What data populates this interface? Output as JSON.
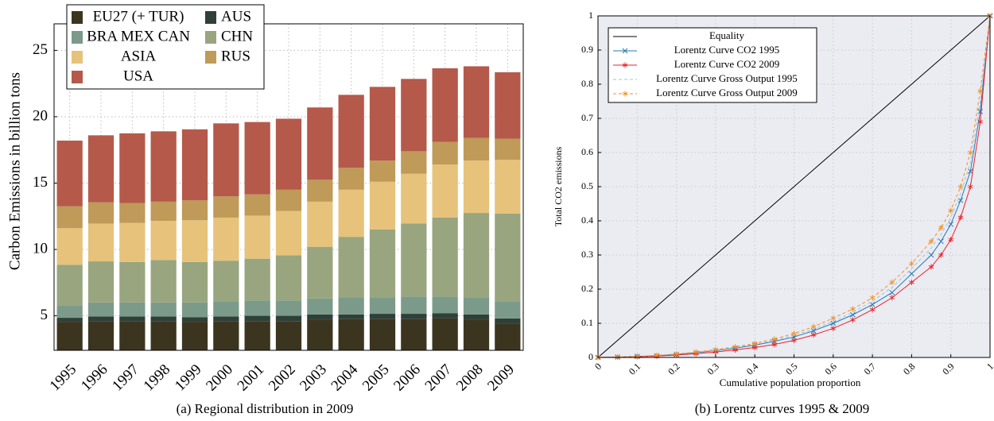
{
  "chart_data": [
    {
      "type": "bar",
      "stacked": true,
      "caption": "(a) Regional distribution in 2009",
      "ylabel": "Carbon Emissions in billion tons",
      "categories": [
        "1995",
        "1996",
        "1997",
        "1998",
        "1999",
        "2000",
        "2001",
        "2002",
        "2003",
        "2004",
        "2005",
        "2006",
        "2007",
        "2008",
        "2009"
      ],
      "series": [
        {
          "name": "EU27 (+ TUR)",
          "color": "#3b3520",
          "values": [
            4.55,
            4.6,
            4.6,
            4.6,
            4.55,
            4.6,
            4.6,
            4.6,
            4.7,
            4.75,
            4.75,
            4.75,
            4.8,
            4.7,
            4.4
          ]
        },
        {
          "name": "AUS",
          "color": "#2f4038",
          "values": [
            0.3,
            0.35,
            0.35,
            0.35,
            0.35,
            0.35,
            0.4,
            0.4,
            0.4,
            0.35,
            0.4,
            0.4,
            0.4,
            0.4,
            0.4
          ]
        },
        {
          "name": "BRA MEX CAN",
          "color": "#7b9a8a",
          "values": [
            0.95,
            1.05,
            1.05,
            1.05,
            1.1,
            1.15,
            1.15,
            1.15,
            1.2,
            1.25,
            1.25,
            1.3,
            1.25,
            1.3,
            1.25
          ]
        },
        {
          "name": "CHN",
          "color": "#98a57e",
          "values": [
            3.05,
            3.1,
            3.05,
            3.2,
            3.05,
            3.05,
            3.15,
            3.4,
            3.9,
            4.6,
            5.1,
            5.5,
            5.95,
            6.35,
            6.65
          ]
        },
        {
          "name": "ASIA",
          "color": "#e6c27a",
          "values": [
            2.75,
            2.85,
            2.95,
            2.95,
            3.15,
            3.25,
            3.25,
            3.35,
            3.4,
            3.55,
            3.6,
            3.75,
            4.0,
            3.95,
            4.05
          ]
        },
        {
          "name": "RUS",
          "color": "#bf9a58",
          "values": [
            1.65,
            1.6,
            1.5,
            1.45,
            1.5,
            1.6,
            1.6,
            1.6,
            1.65,
            1.65,
            1.6,
            1.7,
            1.7,
            1.7,
            1.6
          ]
        },
        {
          "name": "USA",
          "color": "#b5594a",
          "values": [
            4.95,
            5.05,
            5.25,
            5.3,
            5.35,
            5.5,
            5.45,
            5.35,
            5.45,
            5.5,
            5.55,
            5.45,
            5.55,
            5.4,
            5.0
          ]
        }
      ],
      "ylim": [
        2.4,
        27
      ],
      "yticks": [
        5,
        10,
        15,
        20,
        25
      ],
      "grid": true,
      "legend": "upper left"
    },
    {
      "type": "line",
      "caption": "(b) Lorentz curves 1995 & 2009",
      "xlabel": "Cumulative population proportion",
      "ylabel": "Total CO2 emissions",
      "x": [
        0,
        0.05,
        0.1,
        0.15,
        0.2,
        0.25,
        0.3,
        0.35,
        0.4,
        0.45,
        0.5,
        0.55,
        0.6,
        0.65,
        0.7,
        0.75,
        0.8,
        0.85,
        0.875,
        0.9,
        0.925,
        0.95,
        0.975,
        1
      ],
      "series": [
        {
          "name": "Equality",
          "color": "#000000",
          "values": [
            0,
            0.05,
            0.1,
            0.15,
            0.2,
            0.25,
            0.3,
            0.35,
            0.4,
            0.45,
            0.5,
            0.55,
            0.6,
            0.65,
            0.7,
            0.75,
            0.8,
            0.85,
            0.875,
            0.9,
            0.925,
            0.95,
            0.975,
            1
          ]
        },
        {
          "name": "Lorentz Curve CO2 1995",
          "color": "#2a7ab0",
          "marker": "x",
          "values": [
            0,
            0.001,
            0.003,
            0.005,
            0.009,
            0.014,
            0.02,
            0.027,
            0.036,
            0.047,
            0.06,
            0.078,
            0.1,
            0.125,
            0.155,
            0.19,
            0.245,
            0.3,
            0.34,
            0.39,
            0.46,
            0.545,
            0.72,
            1
          ]
        },
        {
          "name": "Lorentz Curve CO2 2009",
          "color": "#e8242a",
          "marker": "star",
          "values": [
            0,
            0.001,
            0.002,
            0.004,
            0.007,
            0.011,
            0.016,
            0.022,
            0.029,
            0.038,
            0.05,
            0.066,
            0.085,
            0.11,
            0.14,
            0.175,
            0.22,
            0.265,
            0.3,
            0.345,
            0.41,
            0.5,
            0.69,
            1
          ]
        },
        {
          "name": "Lorentz Curve Gross Output 1995",
          "color": "#8fc8ea",
          "dashed": true,
          "values": [
            0,
            0.001,
            0.003,
            0.006,
            0.01,
            0.015,
            0.021,
            0.029,
            0.038,
            0.05,
            0.065,
            0.083,
            0.105,
            0.132,
            0.165,
            0.205,
            0.26,
            0.32,
            0.36,
            0.41,
            0.48,
            0.57,
            0.75,
            1
          ]
        },
        {
          "name": "Lorentz Curve Gross Output 2009",
          "color": "#f39021",
          "dashed": true,
          "marker": "star",
          "values": [
            0,
            0.001,
            0.003,
            0.006,
            0.01,
            0.016,
            0.023,
            0.031,
            0.041,
            0.054,
            0.07,
            0.09,
            0.115,
            0.142,
            0.175,
            0.22,
            0.275,
            0.34,
            0.38,
            0.43,
            0.5,
            0.6,
            0.78,
            1
          ]
        }
      ],
      "xlim": [
        0,
        1
      ],
      "ylim": [
        0,
        1
      ],
      "xticks": [
        0,
        0.1,
        0.2,
        0.3,
        0.4,
        0.5,
        0.6,
        0.7,
        0.8,
        0.9,
        1
      ],
      "yticks": [
        0,
        0.1,
        0.2,
        0.3,
        0.4,
        0.5,
        0.6,
        0.7,
        0.8,
        0.9,
        1
      ],
      "grid": true,
      "legend": "upper left"
    }
  ]
}
